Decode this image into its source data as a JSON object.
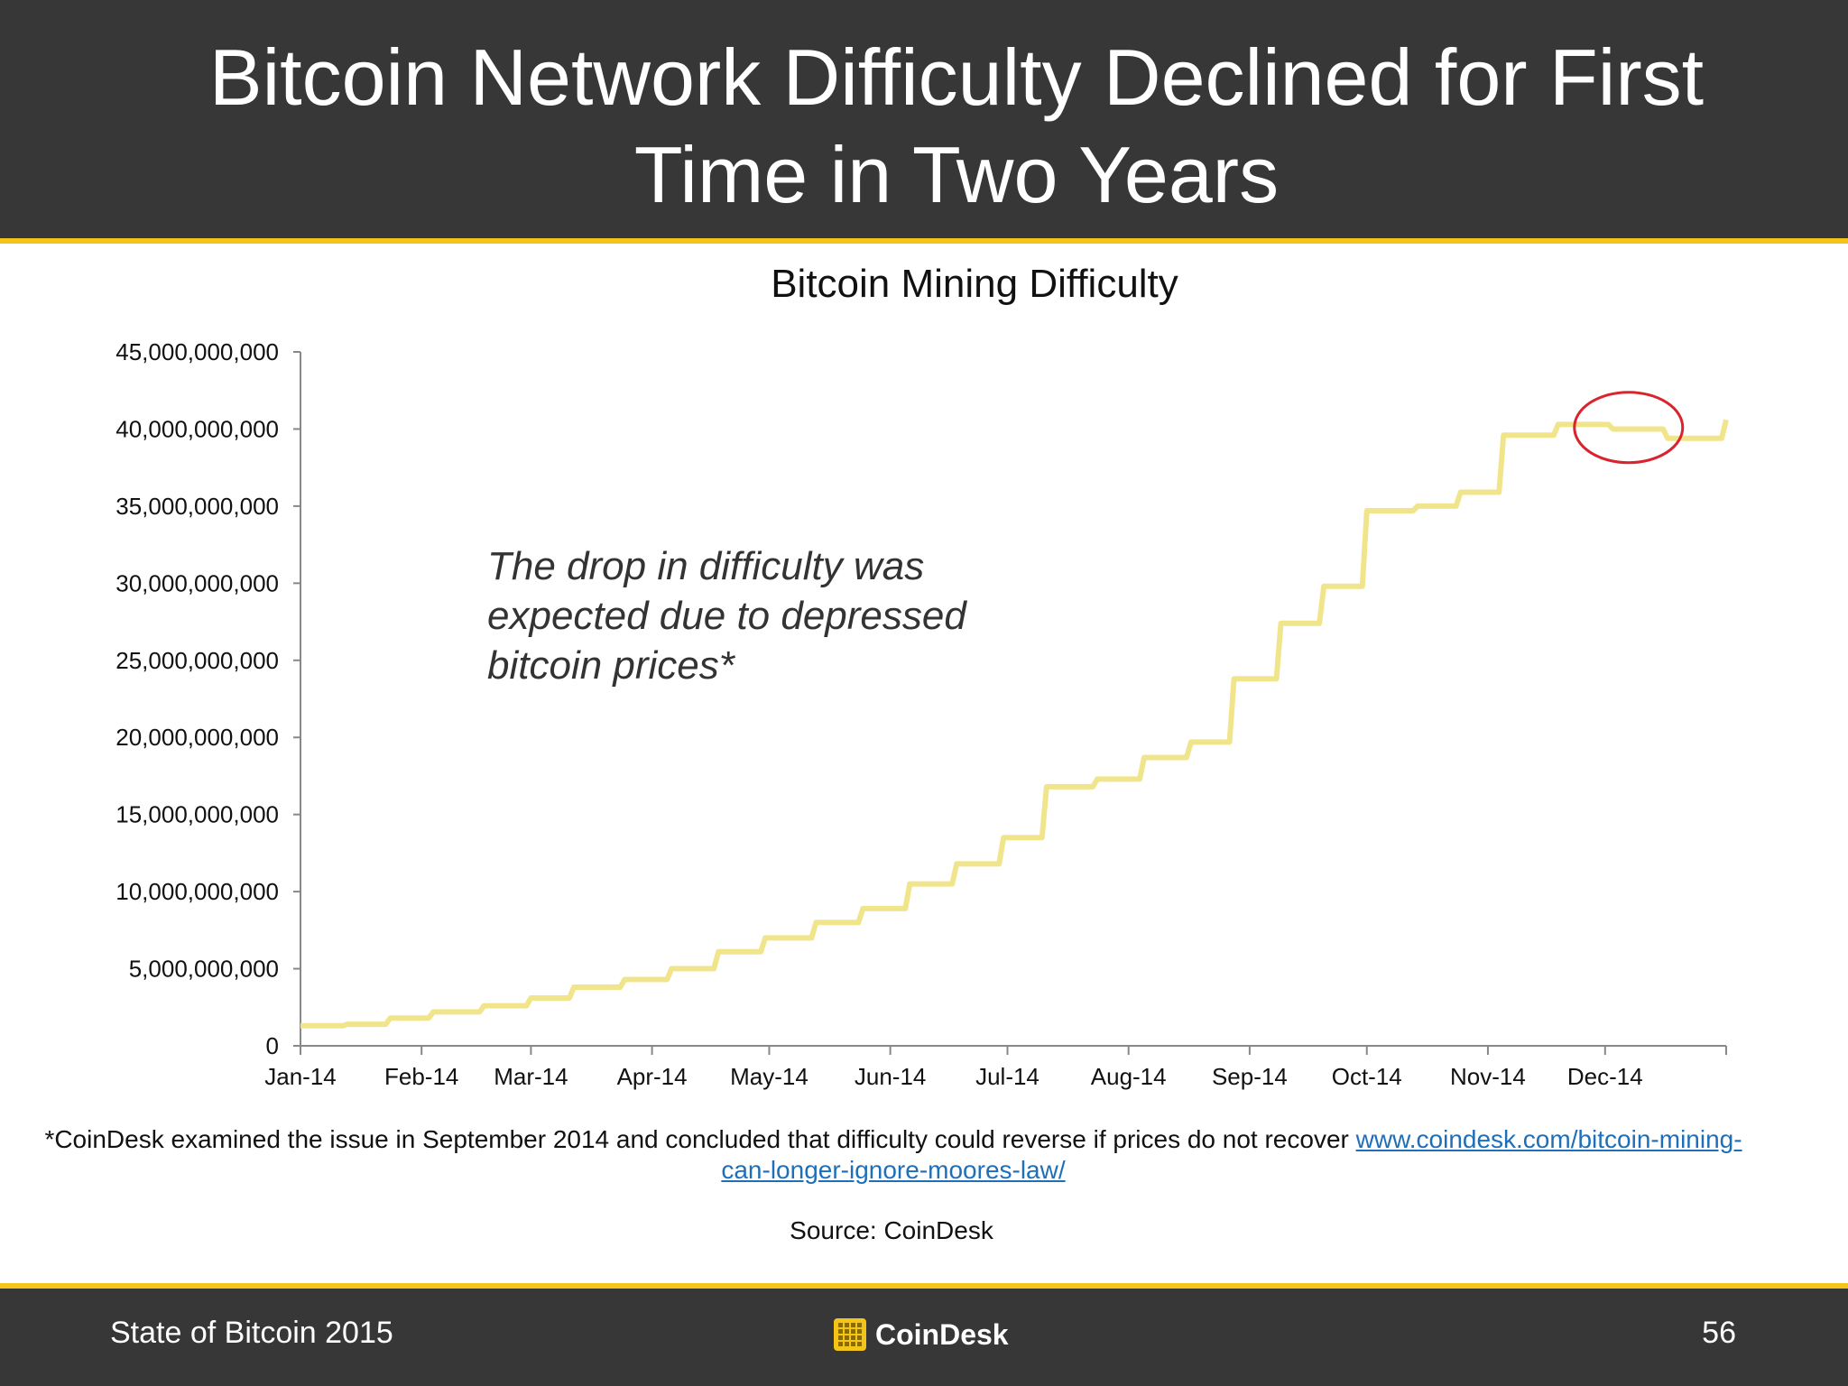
{
  "slide": {
    "title": "Bitcoin Network Difficulty Declined for First Time in Two Years",
    "annotation": "The drop in difficulty was expected due to depressed bitcoin prices*",
    "footnote_text": "*CoinDesk examined the issue in September 2014 and concluded that difficulty could reverse if prices do not recover ",
    "footnote_link": "www.coindesk.com/bitcoin-mining-can-longer-ignore-moores-law/",
    "source": "Source: CoinDesk",
    "footer_left": "State of Bitcoin 2015",
    "footer_logo": "CoinDesk",
    "page_number": "56"
  },
  "colors": {
    "header_bg": "#373737",
    "accent": "#f2c518",
    "line": "#f1e58c",
    "highlight_circle": "#d9232d",
    "link": "#1f6fb8"
  },
  "chart_data": {
    "type": "line",
    "title": "Bitcoin Mining Difficulty",
    "xlabel": "",
    "ylabel": "",
    "ylim": [
      0,
      45000000000
    ],
    "y_ticks": [
      0,
      5000000000,
      10000000000,
      15000000000,
      20000000000,
      25000000000,
      30000000000,
      35000000000,
      40000000000,
      45000000000
    ],
    "y_tick_labels": [
      "0",
      "5,000,000,000",
      "10,000,000,000",
      "15,000,000,000",
      "20,000,000,000",
      "25,000,000,000",
      "30,000,000,000",
      "35,000,000,000",
      "40,000,000,000",
      "45,000,000,000"
    ],
    "x_tick_labels": [
      "Jan-14",
      "Feb-14",
      "Mar-14",
      "Apr-14",
      "May-14",
      "Jun-14",
      "Jul-14",
      "Aug-14",
      "Sep-14",
      "Oct-14",
      "Nov-14",
      "Dec-14"
    ],
    "x_range_days": [
      0,
      365
    ],
    "highlight": "circle around the December 2014 difficulty decline",
    "series": [
      {
        "name": "Bitcoin Mining Difficulty",
        "steps": [
          {
            "day": 0,
            "value": 1300000000
          },
          {
            "day": 12,
            "value": 1400000000
          },
          {
            "day": 23,
            "value": 1800000000
          },
          {
            "day": 34,
            "value": 2200000000
          },
          {
            "day": 47,
            "value": 2600000000
          },
          {
            "day": 59,
            "value": 3100000000
          },
          {
            "day": 70,
            "value": 3800000000
          },
          {
            "day": 83,
            "value": 4300000000
          },
          {
            "day": 95,
            "value": 5000000000
          },
          {
            "day": 107,
            "value": 6100000000
          },
          {
            "day": 119,
            "value": 7000000000
          },
          {
            "day": 132,
            "value": 8000000000
          },
          {
            "day": 144,
            "value": 8900000000
          },
          {
            "day": 156,
            "value": 10500000000
          },
          {
            "day": 168,
            "value": 11800000000
          },
          {
            "day": 180,
            "value": 13500000000
          },
          {
            "day": 191,
            "value": 16800000000
          },
          {
            "day": 204,
            "value": 17300000000
          },
          {
            "day": 216,
            "value": 18700000000
          },
          {
            "day": 228,
            "value": 19700000000
          },
          {
            "day": 239,
            "value": 23800000000
          },
          {
            "day": 251,
            "value": 27400000000
          },
          {
            "day": 262,
            "value": 29800000000
          },
          {
            "day": 273,
            "value": 34700000000
          },
          {
            "day": 286,
            "value": 35000000000
          },
          {
            "day": 297,
            "value": 35900000000
          },
          {
            "day": 308,
            "value": 39600000000
          },
          {
            "day": 322,
            "value": 40300000000
          },
          {
            "day": 336,
            "value": 40000000000
          },
          {
            "day": 350,
            "value": 39400000000
          },
          {
            "day": 363,
            "value": 39400000000
          },
          {
            "day": 365,
            "value": 40600000000
          }
        ]
      }
    ]
  }
}
